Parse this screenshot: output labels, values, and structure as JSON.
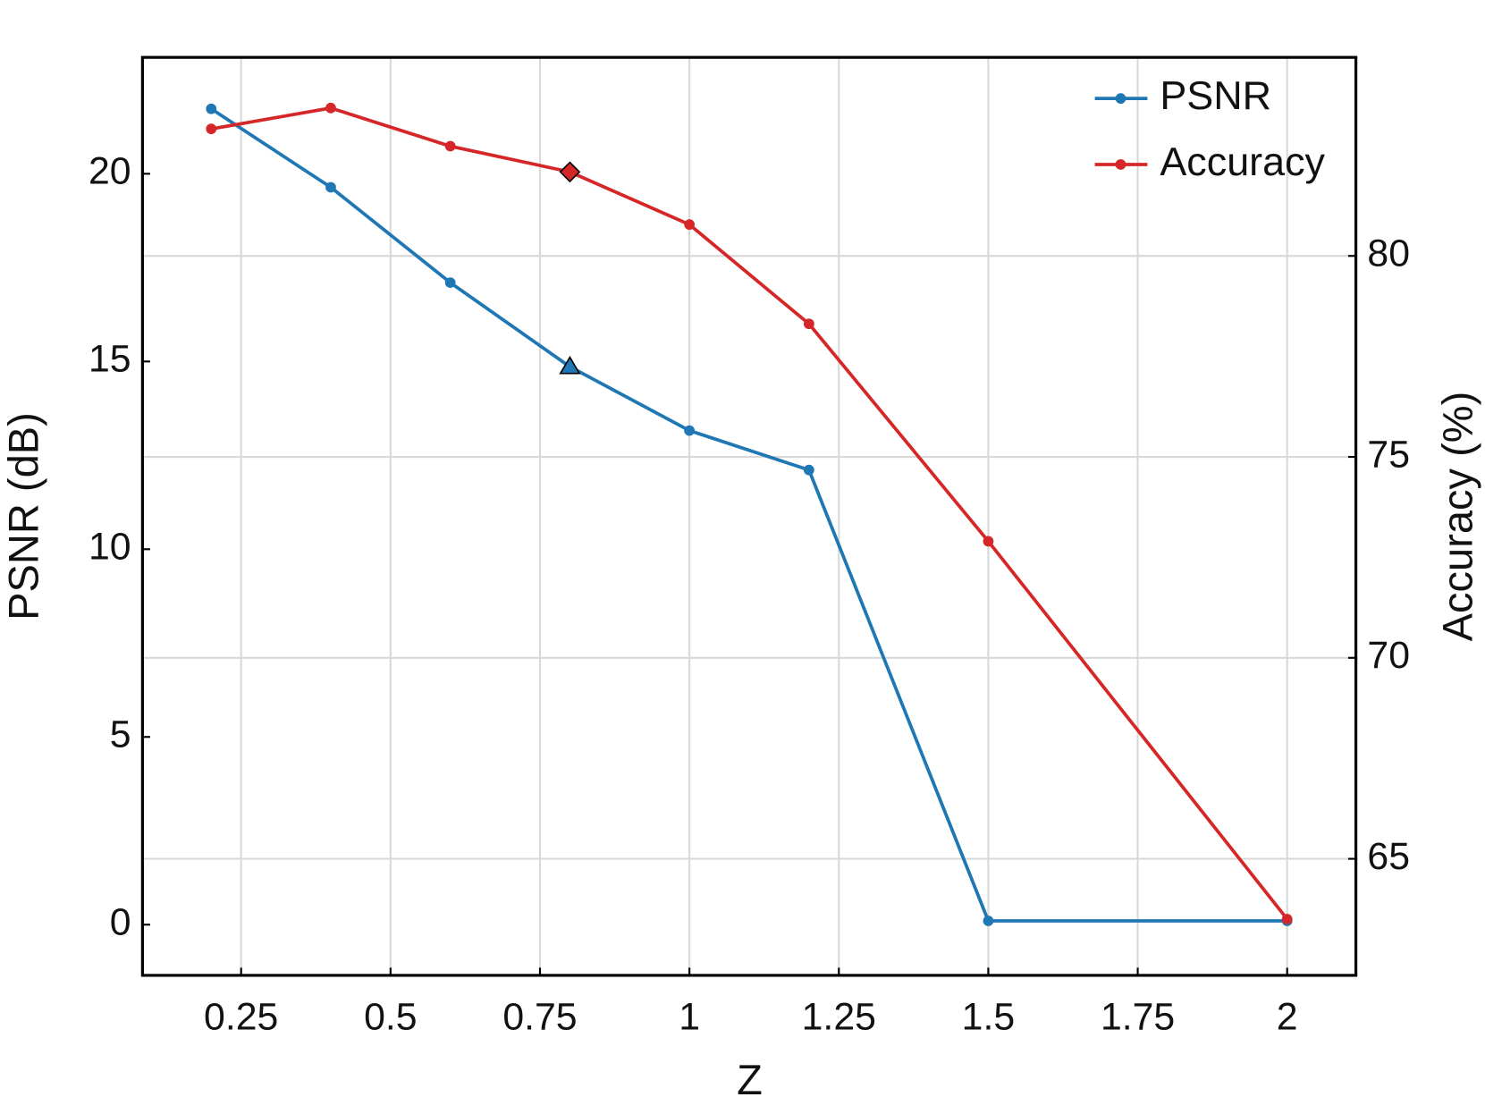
{
  "chart_data": {
    "type": "line",
    "x_label": "Z",
    "y_label": "PSNR (dB)",
    "y2_label": "Accuracy (%)",
    "x": [
      0.2,
      0.4,
      0.6,
      0.8,
      1,
      1.2,
      1.5,
      2
    ],
    "series": [
      {
        "name": "PSNR",
        "color": "#1f77b4",
        "values": [
          21.73,
          19.64,
          17.1,
          14.86,
          13.16,
          12.11,
          0.1,
          0.1
        ],
        "highlight": {
          "index": 3,
          "marker": "triangle"
        }
      },
      {
        "name": "Accuracy",
        "color": "#d62728",
        "axis": "y2",
        "values": [
          83.16,
          83.68,
          82.73,
          82.09,
          80.78,
          78.31,
          72.9,
          63.5
        ],
        "highlight": {
          "index": 3,
          "marker": "diamond"
        }
      }
    ],
    "xlim": [
      0.085,
      2.115
    ],
    "xticks": [
      0.25,
      0.5,
      0.75,
      1,
      1.25,
      1.5,
      1.75,
      2
    ],
    "ylim": [
      -1.35,
      23.1
    ],
    "yticks": [
      0,
      5,
      10,
      15,
      20
    ],
    "y2lim": [
      62.1,
      84.94
    ],
    "y2ticks": [
      65,
      70,
      75,
      80
    ],
    "grid": true,
    "legend": "upper right"
  }
}
